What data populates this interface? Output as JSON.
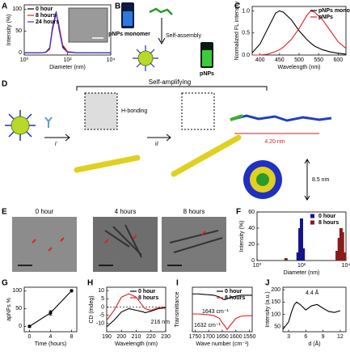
{
  "panel_labels": [
    "A",
    "B",
    "C",
    "D",
    "E",
    "F",
    "G",
    "H",
    "I",
    "J"
  ],
  "figure": {
    "B": {
      "monomer_label": "pNPs monomer",
      "arrow_label": "Self-assembly",
      "product_label": "pNPs"
    },
    "D": {
      "title": "Self-amplifying",
      "step1": "i'",
      "bond": "H-bonding",
      "step2": "ii'",
      "length": "4.20 nm",
      "diameter": "8.5 nm"
    },
    "E": {
      "panels": [
        "0 hour",
        "4 hours",
        "8 hours"
      ]
    }
  },
  "chart_data": [
    {
      "type": "line",
      "xlabel": "Diameter (nm)",
      "ylabel": "Intensity (%)",
      "xlog": true,
      "x": [
        1,
        3,
        6,
        10,
        15,
        20,
        30,
        40,
        60,
        100,
        300,
        1000,
        10000
      ],
      "series": [
        {
          "name": "0 hour",
          "color": "#000000",
          "values": [
            0,
            0,
            0,
            1,
            10,
            55,
            92,
            60,
            15,
            2,
            0,
            0,
            0
          ]
        },
        {
          "name": "8 hours",
          "color": "#e02020",
          "values": [
            0,
            0,
            0,
            1,
            8,
            50,
            90,
            65,
            18,
            3,
            0,
            0,
            0
          ]
        },
        {
          "name": "24 hours",
          "color": "#2040e0",
          "values": [
            0,
            0,
            0,
            2,
            12,
            58,
            95,
            55,
            12,
            1,
            0,
            0,
            0
          ]
        }
      ],
      "xlim": [
        1,
        10000
      ],
      "xticks": [
        {
          "value": 1,
          "label": "10⁰"
        },
        {
          "value": 100,
          "label": "10²"
        },
        {
          "value": 10000,
          "label": "10⁴"
        }
      ],
      "ylim": [
        -5,
        110
      ],
      "yticks": [
        0,
        50,
        100
      ],
      "legend": "upper left"
    },
    {
      "type": "line",
      "xlabel": "Wavelength (nm)",
      "ylabel": "Normalized FL intensity",
      "x": [
        380,
        400,
        420,
        440,
        450,
        460,
        480,
        500,
        520,
        530,
        540,
        560,
        580,
        600,
        620
      ],
      "series": [
        {
          "name": "pNPs monomer",
          "color": "#000000",
          "values": [
            0.05,
            0.25,
            0.6,
            0.95,
            1.0,
            0.97,
            0.8,
            0.55,
            0.35,
            0.27,
            0.2,
            0.12,
            0.07,
            0.04,
            0.02
          ]
        },
        {
          "name": "pNPs",
          "color": "#e02020",
          "values": [
            0,
            0,
            0.02,
            0.08,
            0.12,
            0.18,
            0.35,
            0.6,
            0.9,
            1.0,
            0.97,
            0.8,
            0.55,
            0.3,
            0.15
          ]
        }
      ],
      "xlim": [
        380,
        620
      ],
      "xticks": [
        400,
        450,
        500,
        550,
        600
      ],
      "ylim": [
        0,
        1.1
      ],
      "yticks": [
        {
          "value": 0,
          "label": "0.0"
        },
        0.5,
        {
          "value": 1,
          "label": "1.0"
        }
      ],
      "legend": "upper right"
    },
    {
      "type": "bar",
      "xlabel": "Diameter (nm)",
      "ylabel": "Intensity (%)",
      "xlog": true,
      "series": [
        {
          "name": "0 hour",
          "color": "#14148c",
          "x": [
            70,
            85,
            100,
            120
          ],
          "values": [
            10,
            40,
            52,
            15
          ]
        },
        {
          "name": "8 hours",
          "color": "#8b1a1a",
          "x": [
            20,
            4000,
            5000,
            6000,
            7000,
            8500
          ],
          "values": [
            3,
            12,
            28,
            40,
            35,
            10
          ]
        }
      ],
      "xlim": [
        1,
        10000
      ],
      "xticks": [
        {
          "value": 1,
          "label": "10⁰"
        },
        {
          "value": 100,
          "label": "10²"
        },
        {
          "value": 10000,
          "label": "10⁴"
        }
      ],
      "ylim": [
        0,
        60
      ],
      "yticks": [
        0,
        20,
        40,
        60
      ],
      "legend": "upper right"
    },
    {
      "type": "line",
      "xlabel": "Time (hours)",
      "ylabel": "apNFs %",
      "x": [
        0,
        4,
        8
      ],
      "series": [
        {
          "color": "#000000",
          "values": [
            0,
            38,
            100
          ],
          "errors": [
            3,
            6,
            3
          ]
        }
      ],
      "xlim": [
        -1,
        9
      ],
      "xticks": [
        0,
        4,
        8
      ],
      "ylim": [
        -15,
        110
      ],
      "yticks": [
        0,
        50,
        100
      ],
      "markers": true
    },
    {
      "type": "line",
      "xlabel": "Wavelength (nm)",
      "ylabel": "CD (mdeg)",
      "x": [
        190,
        195,
        200,
        205,
        210,
        215,
        216,
        220,
        225,
        230
      ],
      "series": [
        {
          "name": "0 hour",
          "color": "#000000",
          "values": [
            -12,
            -8,
            -3,
            -1,
            -2,
            -3,
            -3.5,
            -2.5,
            -1,
            -0.5
          ]
        },
        {
          "name": "8 hours",
          "color": "#e02020",
          "values": [
            -8,
            -2,
            6,
            8,
            6,
            0,
            -1,
            -2,
            -0.5,
            0
          ]
        }
      ],
      "xlim": [
        190,
        230
      ],
      "xticks": [
        190,
        200,
        210,
        220,
        230
      ],
      "ylim": [
        -15,
        12
      ],
      "yticks": [
        -10,
        -5,
        0,
        5,
        10
      ],
      "legend": "upper right",
      "annotations": [
        "216 nm"
      ]
    },
    {
      "type": "line",
      "xlabel": "Wave number (cm⁻¹)",
      "ylabel": "Transmittance",
      "x": [
        1760,
        1740,
        1720,
        1700,
        1680,
        1660,
        1650,
        1643,
        1632,
        1620,
        1600,
        1580,
        1560,
        1540
      ],
      "series": [
        {
          "name": "0 hour",
          "color": "#000000",
          "values": [
            0.85,
            0.85,
            0.84,
            0.83,
            0.82,
            0.78,
            0.74,
            0.72,
            0.74,
            0.77,
            0.8,
            0.82,
            0.82,
            0.82
          ]
        },
        {
          "name": "8 hours",
          "color": "#e02020",
          "values": [
            0.4,
            0.4,
            0.39,
            0.38,
            0.36,
            0.3,
            0.2,
            0.15,
            0.05,
            0.15,
            0.3,
            0.35,
            0.36,
            0.36
          ]
        }
      ],
      "xlim": [
        1760,
        1540
      ],
      "xticks": [
        1750,
        1700,
        1650,
        1600,
        1550
      ],
      "ylim": [
        0,
        1
      ],
      "legend": "upper right",
      "annotations": [
        "1643 cm⁻¹",
        "1632 cm⁻¹"
      ]
    },
    {
      "type": "line",
      "xlabel": "d (Å)",
      "ylabel": "Intensity (a.u.)",
      "x": [
        2,
        3,
        3.5,
        4,
        4.4,
        5,
        6,
        7,
        8,
        9,
        10,
        11,
        12
      ],
      "series": [
        {
          "color": "#000000",
          "values": [
            40,
            70,
            110,
            140,
            150,
            140,
            118,
            135,
            140,
            125,
            112,
            108,
            115
          ]
        }
      ],
      "xlim": [
        2,
        13
      ],
      "xticks": [
        3,
        6,
        9,
        12
      ],
      "ylim": [
        30,
        210
      ],
      "yticks": [
        50,
        100,
        150,
        200
      ],
      "annotations": [
        "4.4 Å"
      ]
    }
  ]
}
